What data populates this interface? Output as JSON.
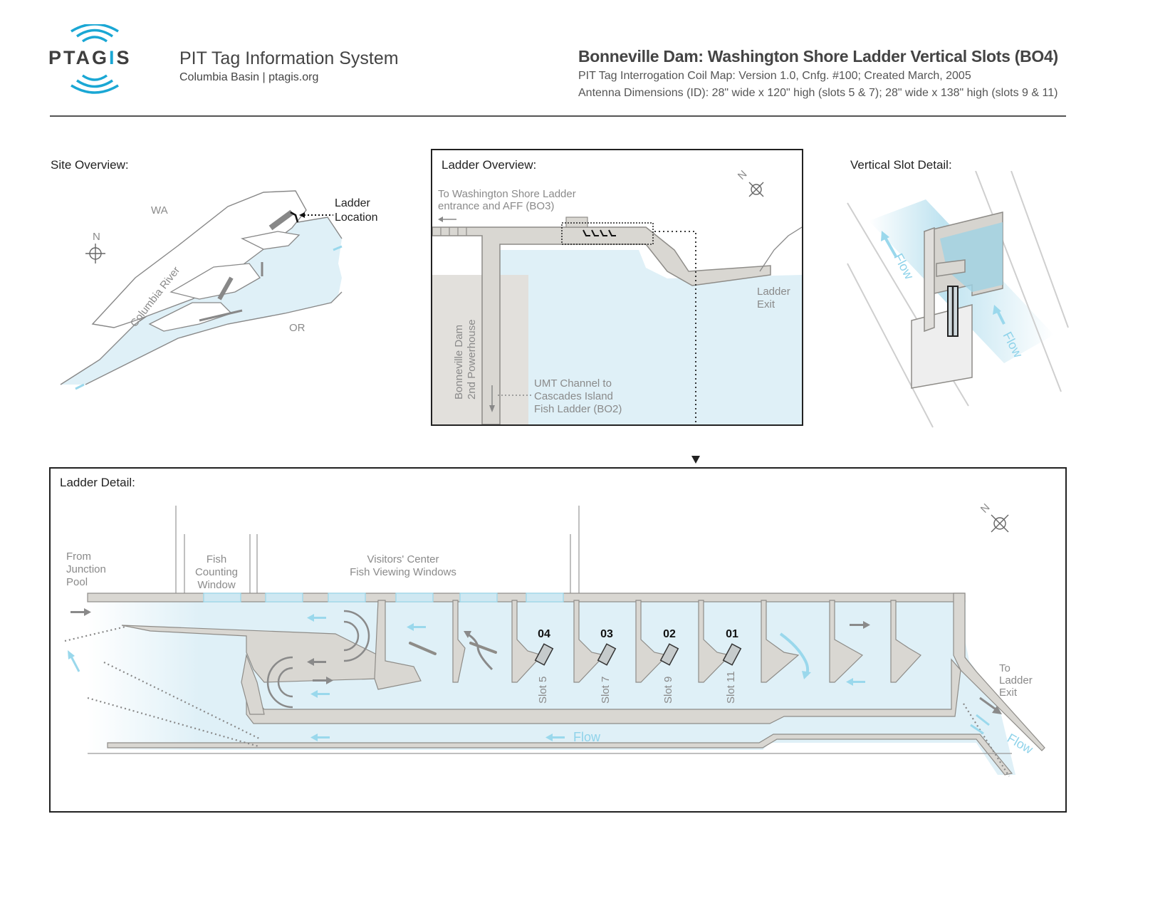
{
  "header": {
    "brand_prefix": "PTAG",
    "brand_accent": "I",
    "brand_suffix": "S",
    "system_title": "PIT Tag Information System",
    "system_subtitle": "Columbia Basin | ptagis.org",
    "title": "Bonneville Dam: Washington Shore Ladder Vertical Slots (BO4)",
    "meta_line_1": "PIT Tag Interrogation Coil Map: Version 1.0, Cnfg. #100; Created March, 2005",
    "meta_line_2": "Antenna Dimensions (ID): 28\" wide x 120\" high (slots 5 & 7); 28\" wide x 138\" high (slots 9 & 11)"
  },
  "site_overview": {
    "label": "Site Overview:",
    "wa": "WA",
    "or": "OR",
    "river": "Columbia River",
    "north": "N",
    "ladder_location_1": "Ladder",
    "ladder_location_2": "Location"
  },
  "ladder_overview": {
    "label": "Ladder Overview:",
    "to_wash_1": "To Washington Shore Ladder",
    "to_wash_2": "entrance and AFF (BO3)",
    "north": "N",
    "exit_1": "Ladder",
    "exit_2": "Exit",
    "powerhouse_1": "Bonneville Dam",
    "powerhouse_2": "2nd Powerhouse",
    "umt_1": "UMT Channel to",
    "umt_2": "Cascades Island",
    "umt_3": "Fish Ladder (BO2)"
  },
  "vertical_slot": {
    "label": "Vertical Slot Detail:",
    "flow_1": "Flow",
    "flow_2": "Flow"
  },
  "ladder_detail": {
    "label": "Ladder Detail:",
    "from_1": "From",
    "from_2": "Junction",
    "from_3": "Pool",
    "fcw_1": "Fish",
    "fcw_2": "Counting",
    "fcw_3": "Window",
    "visitors_1": "Visitors' Center",
    "visitors_2": "Fish Viewing Windows",
    "north": "N",
    "to_exit_1": "To",
    "to_exit_2": "Ladder",
    "to_exit_3": "Exit",
    "flow": "Flow",
    "flow_exit": "Flow",
    "antennas": [
      {
        "id": "04",
        "slot": "Slot 5"
      },
      {
        "id": "03",
        "slot": "Slot 7"
      },
      {
        "id": "02",
        "slot": "Slot 9"
      },
      {
        "id": "01",
        "slot": "Slot 11"
      }
    ]
  },
  "colors": {
    "water": "#dff0f7",
    "concrete": "#d9d7d2",
    "concrete_edge": "#8e8c88",
    "accent": "#1aa7d4",
    "flow_arrow": "#9ad8ec"
  }
}
